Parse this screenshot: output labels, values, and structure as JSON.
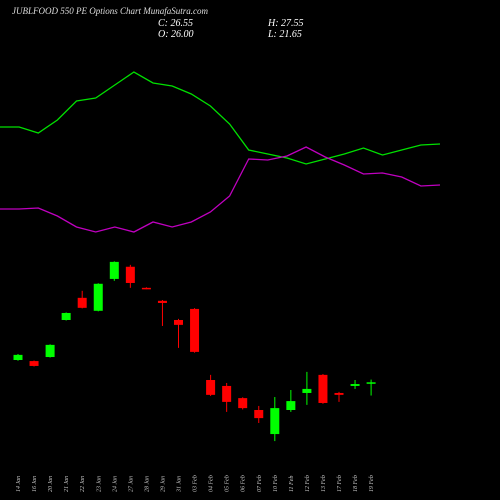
{
  "header": {
    "title": "JUBLFOOD 550 PE Options Chart MunafaSutra.com",
    "summary": [
      "C: 26.55",
      "H: 27.55",
      "O: 26.00",
      "L: 21.65"
    ]
  },
  "chart_data": [
    {
      "type": "candlestick",
      "categories": [
        "14 Jan",
        "16 Jan",
        "20 Jan",
        "21 Jan",
        "22 Jan",
        "23 Jan",
        "24 Jan",
        "27 Jan",
        "28 Jan",
        "29 Jan",
        "31 Jan",
        "03 Feb",
        "04 Feb",
        "05 Feb",
        "06 Feb",
        "07 Feb",
        "10 Feb",
        "11 Feb",
        "12 Feb",
        "13 Feb",
        "17 Feb",
        "18 Feb",
        "19 Feb"
      ],
      "open": [
        34.8,
        34.4,
        35.9,
        49.6,
        57.8,
        53,
        64.8,
        69.3,
        61.5,
        56.7,
        49.6,
        53.7,
        27.4,
        25.2,
        20.7,
        16.3,
        7.4,
        16.3,
        22.6,
        29.3,
        22.6,
        25.2,
        26.0
      ],
      "high": [
        37,
        34.6,
        40.6,
        52.4,
        60.4,
        63.2,
        71.3,
        70,
        61.7,
        57,
        50,
        54,
        29.3,
        26.3,
        21,
        17.8,
        21.1,
        23.7,
        30.4,
        29.6,
        23,
        27.4,
        27.55
      ],
      "low": [
        34.5,
        32.4,
        35.7,
        49.4,
        53.9,
        52.8,
        64.1,
        61.5,
        61,
        47.4,
        39.3,
        37.5,
        21.5,
        15.6,
        16.5,
        11.5,
        4.8,
        15.6,
        18.2,
        18.6,
        19.3,
        24.1,
        21.65
      ],
      "close": [
        36.7,
        32.6,
        40.4,
        52.2,
        54.1,
        63,
        71.1,
        63.3,
        61.2,
        55.9,
        47.8,
        37.8,
        21.9,
        19.3,
        17,
        13.3,
        17,
        19.6,
        24.1,
        18.9,
        21.9,
        25.9,
        26.55
      ],
      "up_color": "#00ff00",
      "down_color": "#ff0000",
      "ylim": [
        -17,
        168
      ]
    },
    {
      "type": "line",
      "categories": [
        null,
        null,
        null,
        null,
        null,
        null,
        null,
        null,
        null,
        null,
        null,
        null,
        null,
        null,
        null,
        null,
        null,
        null,
        null,
        null,
        null,
        null,
        null,
        null
      ],
      "series": [
        {
          "color": "#00e000",
          "values": [
            74.6,
            74.6,
            73.4,
            76,
            79.8,
            80.4,
            83,
            85.6,
            83.4,
            82.8,
            81.2,
            78.8,
            75.2,
            70,
            69.2,
            68.4,
            67.2,
            68.2,
            69.2,
            70.4,
            69,
            70,
            71,
            71.2
          ]
        },
        {
          "color": "#c000c0",
          "values": [
            58.2,
            58.2,
            58.4,
            56.8,
            54.6,
            53.6,
            54.6,
            53.6,
            55.6,
            54.6,
            55.6,
            57.6,
            60.8,
            68.2,
            68,
            68.8,
            70.6,
            68.6,
            67,
            65.2,
            65.4,
            64.6,
            62.8,
            63
          ]
        }
      ],
      "ylim": [
        0,
        100
      ]
    }
  ]
}
